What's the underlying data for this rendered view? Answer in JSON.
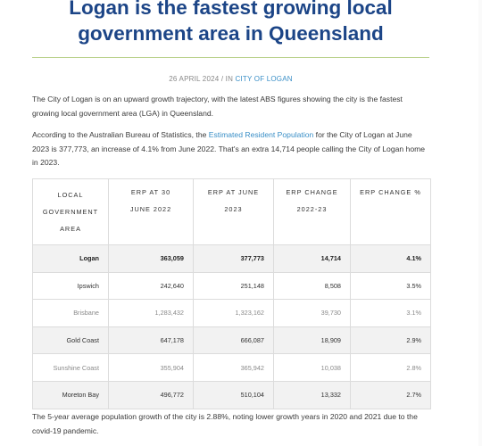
{
  "article": {
    "title": "Logan is the fastest growing local government area in Queensland",
    "meta": {
      "date": "26 APRIL 2024",
      "separator": " / IN ",
      "category": "CITY OF LOGAN"
    },
    "intro": "The City of Logan is on an upward growth trajectory, with the latest ABS figures showing the city is the fastest growing local government area (LGA) in Queensland.",
    "para2": {
      "before": "According to the Australian Bureau of Statistics, the ",
      "link": "Estimated Resident Population",
      "after": " for the City of Logan at June 2023 is 377,773, an increase of 4.1% from June 2022. That's an extra 14,714 people calling the City of Logan home in 2023."
    },
    "outro": "The 5-year average population growth of the city is 2.88%, noting lower growth years in 2020 and 2021 due to the covid-19 pandemic."
  },
  "table": {
    "headers": {
      "lga": [
        "LOCAL",
        "GOVERNMENT",
        "AREA"
      ],
      "erp2022": [
        "ERP AT 30",
        "JUNE 2022"
      ],
      "erp2023": [
        "ERP AT JUNE",
        "2023"
      ],
      "change": [
        "ERP CHANGE",
        "2022-23"
      ],
      "change_pct": [
        "ERP CHANGE %"
      ]
    },
    "rows": [
      {
        "lga": "Logan",
        "erp2022": "363,059",
        "erp2023": "377,773",
        "change": "14,714",
        "pct": "4.1%"
      },
      {
        "lga": "Ipswich",
        "erp2022": "242,640",
        "erp2023": "251,148",
        "change": "8,508",
        "pct": "3.5%"
      },
      {
        "lga": "Brisbane",
        "erp2022": "1,283,432",
        "erp2023": "1,323,162",
        "change": "39,730",
        "pct": "3.1%"
      },
      {
        "lga": "Gold Coast",
        "erp2022": "647,178",
        "erp2023": "666,087",
        "change": "18,909",
        "pct": "2.9%"
      },
      {
        "lga": "Sunshine Coast",
        "erp2022": "355,904",
        "erp2023": "365,942",
        "change": "10,038",
        "pct": "2.8%"
      },
      {
        "lga": "Moreton Bay",
        "erp2022": "496,772",
        "erp2023": "510,104",
        "change": "13,332",
        "pct": "2.7%"
      }
    ]
  }
}
